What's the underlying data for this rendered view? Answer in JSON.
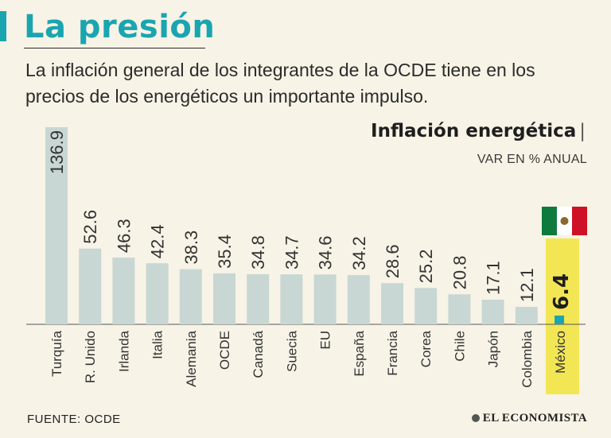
{
  "header": {
    "title": "La presión",
    "subtitle": "La inflación general de los integrantes de la OCDE tiene en los precios de los energéticos un importante impulso."
  },
  "footer": {
    "source": "FUENTE:  OCDE",
    "brand": "EL ECONOMISTA"
  },
  "colors": {
    "accent": "#1aa5b0",
    "bar": "#c8d7d3",
    "highlight_bar": "#f3e654",
    "highlight_label": "#1aa5b0",
    "background": "#f7f3e6"
  },
  "chart_data": {
    "type": "bar",
    "title": "Inflación energética",
    "title_separator": "|",
    "subtitle": "VAR EN % ANUAL",
    "categories": [
      "Turquía",
      "R. Unido",
      "Irlanda",
      "Italia",
      "Alemania",
      "OCDE",
      "Canadá",
      "Suecia",
      "EU",
      "España",
      "Francia",
      "Corea",
      "Chile",
      "Japón",
      "Colombia",
      "México"
    ],
    "values": [
      136.9,
      52.6,
      46.3,
      42.4,
      38.3,
      35.4,
      34.8,
      34.7,
      34.6,
      34.2,
      28.6,
      25.2,
      20.8,
      17.1,
      12.1,
      6.4
    ],
    "value_labels": [
      "136.9",
      "52.6",
      "46.3",
      "42.4",
      "38.3",
      "35.4",
      "34.8",
      "34.7",
      "34.6",
      "34.2",
      "28.6",
      "25.2",
      "20.8",
      "17.1",
      "12.1",
      "6.4"
    ],
    "highlight": "México",
    "ylim": [
      0,
      136.9
    ],
    "grid": false,
    "legend": "none"
  }
}
